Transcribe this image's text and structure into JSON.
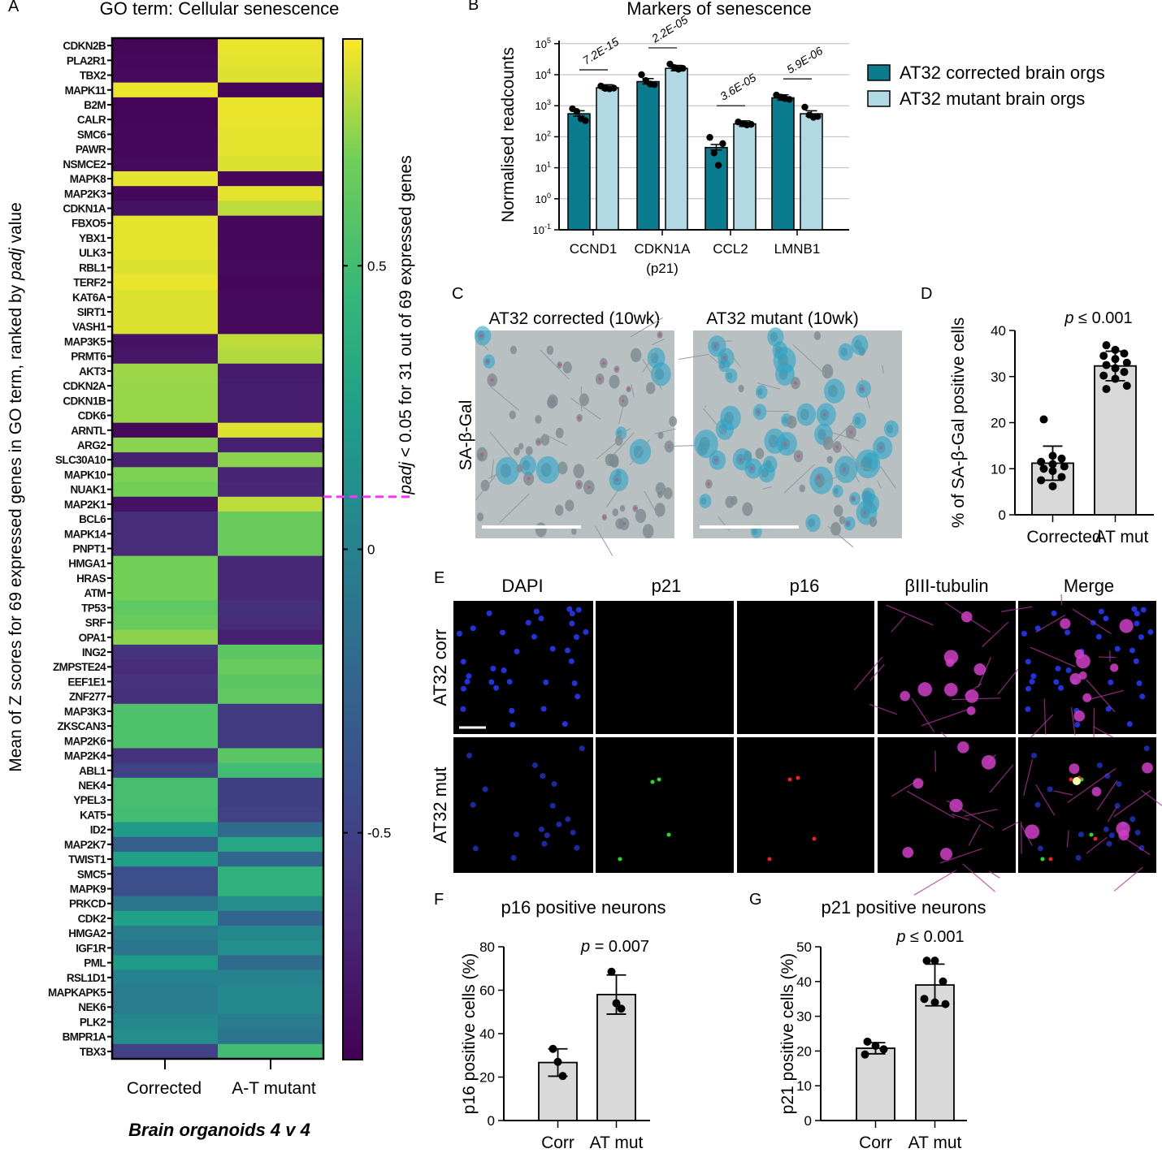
{
  "panel_letters": {
    "a": "A",
    "b": "B",
    "c": "C",
    "d": "D",
    "e": "E",
    "f": "F",
    "g": "G"
  },
  "colors": {
    "corrected": "#0b7b8e",
    "mutant": "#b1d9e4",
    "bar_gray": "#d9d9d9",
    "threshold_line": "#ff33ff"
  },
  "chart_data": [
    {
      "id": "A",
      "type": "heatmap",
      "title": "GO term: Cellular senescence",
      "ylabel_parts": [
        "Mean of Z scores for 69 expressed genes in GO term, ranked by ",
        "padj",
        " value"
      ],
      "colorbar_label_parts": [
        "padj",
        " < 0.05 for 31 out of 69 expressed genes"
      ],
      "colorbar_ticks": [
        0.5,
        0,
        -0.5
      ],
      "colorbar_tick_labels": [
        "0.5",
        "0",
        "-0.5"
      ],
      "color_range": [
        -0.9,
        0.9
      ],
      "colormap": "viridis",
      "threshold_after_gene": "NUAK1",
      "columns": [
        "Corrected",
        "A-T mutant"
      ],
      "footer": "Brain organoids 4 v 4",
      "genes": [
        "CDKN2B",
        "PLA2R1",
        "TBX2",
        "MAPK11",
        "B2M",
        "CALR",
        "SMC6",
        "PAWR",
        "NSMCE2",
        "MAPK8",
        "MAP2K3",
        "CDKN1A",
        "FBXO5",
        "YBX1",
        "ULK3",
        "RBL1",
        "TERF2",
        "KAT6A",
        "SIRT1",
        "VASH1",
        "MAP3K5",
        "PRMT6",
        "AKT3",
        "CDKN2A",
        "CDKN1B",
        "CDK6",
        "ARNTL",
        "ARG2",
        "SLC30A10",
        "MAPK10",
        "NUAK1",
        "MAP2K1",
        "BCL6",
        "MAPK14",
        "PNPT1",
        "HMGA1",
        "HRAS",
        "ATM",
        "TP53",
        "SRF",
        "OPA1",
        "ING2",
        "ZMPSTE24",
        "EEF1E1",
        "ZNF277",
        "MAP3K3",
        "ZKSCAN3",
        "MAP2K6",
        "MAP2K4",
        "ABL1",
        "NEK4",
        "YPEL3",
        "KAT5",
        "ID2",
        "MAP2K7",
        "TWIST1",
        "SMC5",
        "MAPK9",
        "PRKCD",
        "CDK2",
        "HMGA2",
        "IGF1R",
        "PML",
        "RSL1D1",
        "MAPKAPK5",
        "NEK6",
        "PLK2",
        "BMPR1A",
        "TBX3"
      ],
      "corrected": [
        -0.87,
        -0.86,
        -0.85,
        0.87,
        -0.87,
        -0.87,
        -0.86,
        -0.86,
        -0.85,
        0.86,
        -0.86,
        -0.8,
        0.86,
        0.86,
        0.86,
        0.85,
        0.87,
        0.85,
        0.85,
        0.85,
        -0.8,
        -0.78,
        0.75,
        0.74,
        0.74,
        0.74,
        -0.85,
        0.72,
        -0.72,
        0.7,
        0.68,
        -0.8,
        -0.65,
        -0.65,
        -0.65,
        0.68,
        0.68,
        0.68,
        0.62,
        0.65,
        0.72,
        -0.6,
        -0.65,
        -0.6,
        -0.62,
        0.55,
        0.55,
        0.55,
        -0.6,
        -0.5,
        0.52,
        0.52,
        0.5,
        0.2,
        -0.3,
        0.25,
        -0.4,
        -0.4,
        -0.1,
        0.25,
        -0.05,
        -0.1,
        0.2,
        0.0,
        -0.05,
        -0.05,
        0.05,
        0.1,
        -0.5
      ],
      "mutant": [
        0.87,
        0.86,
        0.85,
        -0.87,
        0.87,
        0.87,
        0.86,
        0.86,
        0.85,
        -0.86,
        0.86,
        0.8,
        -0.86,
        -0.86,
        -0.86,
        -0.85,
        -0.87,
        -0.85,
        -0.85,
        -0.85,
        0.8,
        0.78,
        -0.75,
        -0.74,
        -0.74,
        -0.74,
        0.85,
        -0.72,
        0.72,
        -0.7,
        -0.68,
        0.8,
        0.65,
        0.65,
        0.65,
        -0.68,
        -0.68,
        -0.68,
        -0.62,
        -0.65,
        -0.72,
        0.6,
        0.65,
        0.6,
        0.62,
        -0.55,
        -0.55,
        -0.55,
        0.6,
        0.5,
        -0.52,
        -0.52,
        -0.5,
        -0.2,
        0.3,
        -0.25,
        0.4,
        0.4,
        0.1,
        -0.25,
        0.05,
        0.1,
        -0.2,
        0.0,
        0.05,
        0.05,
        -0.05,
        -0.1,
        0.5
      ]
    },
    {
      "id": "B",
      "type": "bar",
      "title": "Markers of senescence",
      "ylabel": "Normalised readcounts",
      "yscale": "log10",
      "ylim": [
        0.1,
        100000
      ],
      "ytick_base": "10",
      "ytick_exponents": [
        "5",
        "4",
        "3",
        "2",
        "1",
        "0",
        "-1"
      ],
      "categories": [
        "CCND1",
        "CDKN1A",
        "CCL2",
        "LMNB1"
      ],
      "category_sublabels": [
        "",
        "(p21)",
        "",
        ""
      ],
      "series": [
        {
          "name": "AT32 corrected brain orgs",
          "values": [
            550,
            6000,
            45,
            1800
          ],
          "points": [
            [
              800,
              650,
              380,
              330
            ],
            [
              10000,
              6500,
              5000,
              4800
            ],
            [
              95,
              30,
              12,
              60
            ],
            [
              2200,
              1900,
              1700,
              1600
            ]
          ]
        },
        {
          "name": "AT32 mutant brain orgs",
          "values": [
            3800,
            16000,
            260,
            550
          ],
          "points": [
            [
              4300,
              3600,
              3500,
              3700
            ],
            [
              22000,
              17000,
              15000,
              16000
            ],
            [
              300,
              260,
              240,
              250
            ],
            [
              900,
              500,
              420,
              450
            ]
          ]
        }
      ],
      "pvalues": [
        "7.2E-15",
        "2.2E-05",
        "3.6E-05",
        "5.9E-06"
      ],
      "legend": "right"
    },
    {
      "id": "C",
      "type": "image",
      "row_label": "SA-β-Gal",
      "column_titles": [
        "AT32 corrected (10wk)",
        "AT32 mutant (10wk)"
      ]
    },
    {
      "id": "D",
      "type": "bar",
      "ylabel": "% of SA-β-Gal positive cells",
      "ylim": [
        0,
        40
      ],
      "yticks": [
        "0",
        "10",
        "20",
        "30",
        "40"
      ],
      "categories": [
        "Corrected",
        "AT mut"
      ],
      "values": [
        11.2,
        32.3
      ],
      "sd": [
        3.7,
        3.2
      ],
      "points": [
        [
          20.7,
          12.8,
          12.2,
          11.5,
          11,
          10.5,
          10,
          9.5,
          8.2,
          7.5,
          6.2
        ],
        [
          36.8,
          35.8,
          35,
          34.5,
          33.8,
          33,
          32.5,
          31.8,
          31,
          30.2,
          29.5,
          28,
          27.3
        ]
      ],
      "p_parts": [
        "p",
        " ≤ 0.001"
      ]
    },
    {
      "id": "E",
      "type": "image",
      "column_titles": [
        "DAPI",
        "p21",
        "p16",
        "βIII-tubulin",
        "Merge"
      ],
      "row_labels": [
        "AT32 corr",
        "AT32 mut"
      ]
    },
    {
      "id": "F",
      "type": "bar",
      "title": "p16 positive neurons",
      "ylabel": "p16 positive cells (%)",
      "ylim": [
        0,
        80
      ],
      "yticks": [
        "0",
        "20",
        "40",
        "60",
        "80"
      ],
      "categories": [
        "Corr",
        "AT mut"
      ],
      "values": [
        26.7,
        58
      ],
      "sd": [
        6.3,
        9
      ],
      "points": [
        [
          33,
          27,
          20.5
        ],
        [
          68.5,
          54,
          51.5
        ]
      ],
      "p_parts": [
        "p",
        " = 0.007"
      ]
    },
    {
      "id": "G",
      "type": "bar",
      "title": "p21 positive neurons",
      "ylabel": "p21 positive cells (%)",
      "ylim": [
        0,
        50
      ],
      "yticks": [
        "0",
        "10",
        "20",
        "30",
        "40",
        "50"
      ],
      "categories": [
        "Corr",
        "AT mut"
      ],
      "values": [
        20.8,
        39
      ],
      "sd": [
        1.6,
        6
      ],
      "points": [
        [
          22.7,
          21.5,
          20.5,
          19
        ],
        [
          46,
          46,
          40,
          35,
          34,
          33.5
        ]
      ],
      "p_parts": [
        "p",
        " ≤ 0.001"
      ]
    }
  ]
}
